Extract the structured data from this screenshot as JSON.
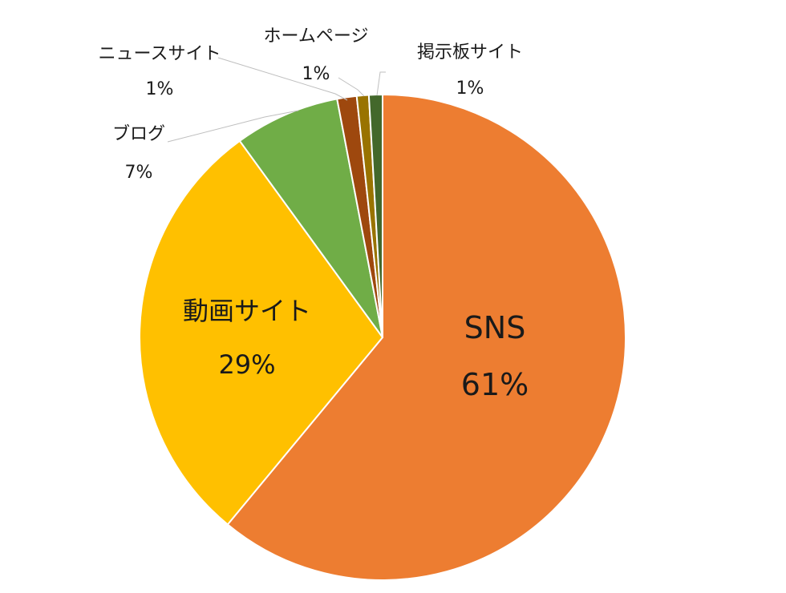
{
  "chart_data": {
    "type": "pie",
    "title": "",
    "slices": [
      {
        "label": "SNS",
        "percent_label": "61%",
        "value": 61.0,
        "color": "#ED7D31"
      },
      {
        "label": "動画サイト",
        "percent_label": "29%",
        "value": 29.0,
        "color": "#FFC000"
      },
      {
        "label": "ブログ",
        "percent_label": "7%",
        "value": 7.0,
        "color": "#70AD47"
      },
      {
        "label": "ニュースサイト",
        "percent_label": "1%",
        "value": 1.3,
        "color": "#9E480E"
      },
      {
        "label": "ホームページ",
        "percent_label": "1%",
        "value": 0.8,
        "color": "#997300"
      },
      {
        "label": "掲示板サイト",
        "percent_label": "1%",
        "value": 0.9,
        "color": "#43682B"
      }
    ],
    "legend": "none",
    "start_angle": "12 o'clock",
    "direction": "clockwise"
  }
}
